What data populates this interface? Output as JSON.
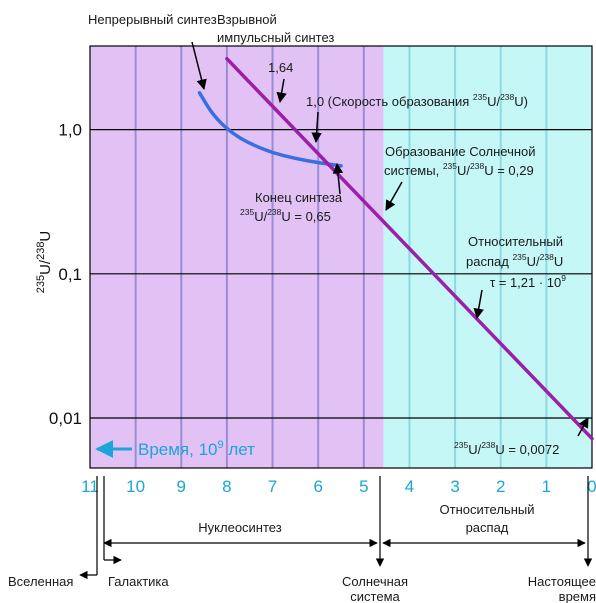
{
  "chart_data": {
    "type": "line",
    "x_axis": {
      "direction": "reversed",
      "ticks": [
        11,
        10,
        9,
        8,
        7,
        6,
        5,
        4,
        3,
        2,
        1,
        0
      ],
      "xlim": [
        11,
        0
      ],
      "label": "Время, 10⁹ лет",
      "label_color": "#1aa6d8"
    },
    "y_axis": {
      "scale": "log",
      "ylim": [
        0.0045,
        3.8
      ],
      "ticks": [
        {
          "value": 0.01,
          "label": "0,01"
        },
        {
          "value": 0.1,
          "label": "0,1"
        },
        {
          "value": 1.0,
          "label": "1,0"
        }
      ],
      "label": "²³⁵U/²³⁸U"
    },
    "regions": [
      {
        "name": "Нуклеосинтез",
        "x_from": 11,
        "x_to": 4.57,
        "color": "#e2c2f5"
      },
      {
        "name": "Относительный распад",
        "x_from": 4.57,
        "x_to": 0,
        "color": "#c5f7f7"
      }
    ],
    "series": [
      {
        "name": "Непрерывный синтез",
        "color": "#3a6fe0",
        "points": [
          [
            8.6,
            1.8
          ],
          [
            8.3,
            1.25
          ],
          [
            7.9,
            0.95
          ],
          [
            7.5,
            0.8
          ],
          [
            7.0,
            0.69
          ],
          [
            6.5,
            0.63
          ],
          [
            6.0,
            0.59
          ],
          [
            5.5,
            0.56
          ]
        ]
      },
      {
        "name": "Взрывной импульсный синтез",
        "color": "#9b1fa8",
        "points": [
          [
            8.0,
            3.1
          ],
          [
            0.0,
            0.0072
          ]
        ]
      }
    ],
    "annotations": {
      "continuous": "Непрерывный синтез",
      "explosive_1": "Взрывной",
      "explosive_2": "импульсный синтез",
      "v164": "1,64",
      "v10_pre": "1,0 (Скорость образования ",
      "v10_post": "U)",
      "solar_1": "Образование Солнечной",
      "solar_2_pre": "системы, ",
      "solar_2_post": "U = 0,29",
      "end_1": "Конец синтеза",
      "end_2_post": "U = 0,65",
      "decay_1": "Относительный",
      "decay_2_pre": "распад ",
      "decay_2_post": "U",
      "decay_3": "τ = 1,21 · 10",
      "decay_3_exp": "9",
      "final_post": "U = 0,0072",
      "iso_a": "235",
      "iso_b": "238",
      "iso_u_slash": "U/"
    },
    "bottom_axis": {
      "nucleosynthesis": "Нуклеосинтез",
      "relative_decay_1": "Относительный",
      "relative_decay_2": "распад",
      "universe": "Вселенная",
      "galaxy": "Галактика",
      "solar_1": "Солнечная",
      "solar_2": "система",
      "present_1": "Настоящее",
      "present_2": "время"
    },
    "time_label_pre": "Время, 10",
    "time_label_exp": "9",
    "time_label_post": " лет",
    "gridlines": "on"
  }
}
